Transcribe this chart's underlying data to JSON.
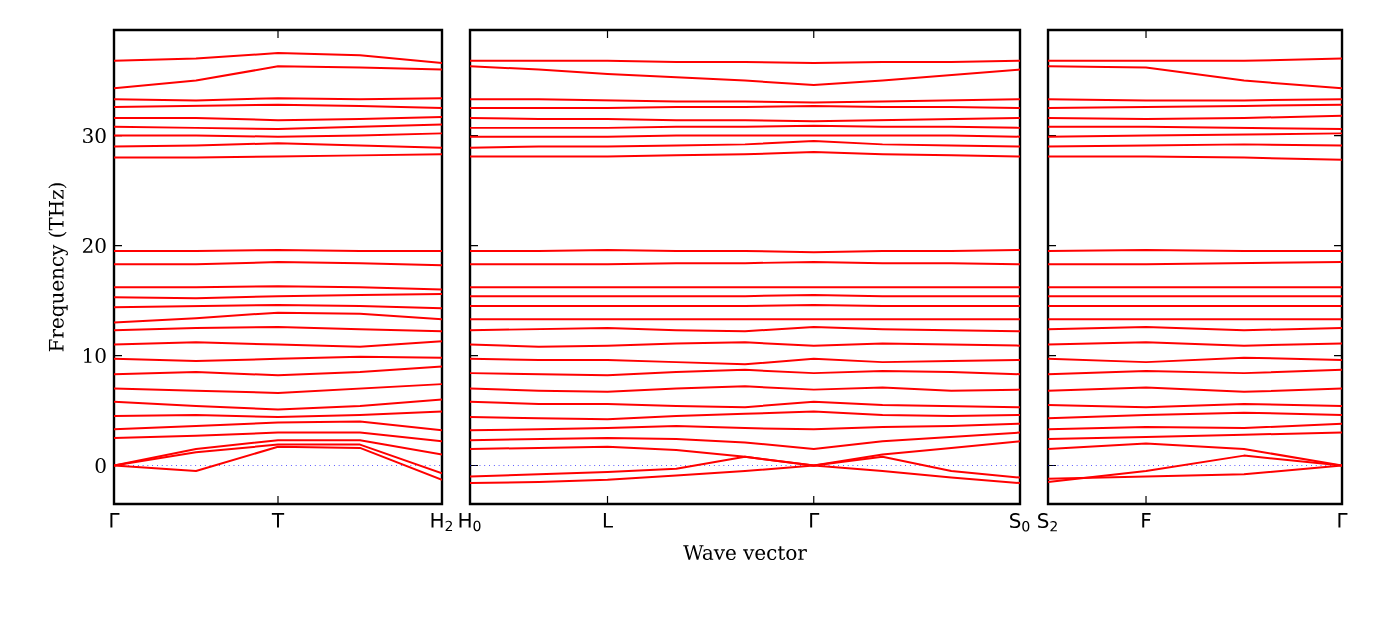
{
  "chart_data": [
    {
      "type": "line",
      "ylabel": "Frequency (THz)",
      "categories": [
        "Γ",
        null,
        "T",
        null,
        "H$_{2}$"
      ],
      "ylim": [
        -3.5,
        39.6
      ],
      "yticks": [
        0,
        10,
        20,
        30
      ],
      "ref_lines": [
        {
          "axis": "y",
          "value": 0,
          "color": "#0000ff",
          "line_style": "dotted"
        }
      ],
      "series": [
        {
          "color": "#ff0000",
          "values": [
            0,
            -0.5,
            1.7,
            1.6,
            -1.3
          ]
        },
        {
          "color": "#ff0000",
          "values": [
            0,
            1.2,
            1.9,
            1.9,
            -0.7
          ]
        },
        {
          "color": "#ff0000",
          "values": [
            0,
            1.5,
            2.3,
            2.3,
            1
          ]
        },
        {
          "color": "#ff0000",
          "values": [
            2.5,
            2.7,
            3,
            3,
            2.2
          ]
        },
        {
          "color": "#ff0000",
          "values": [
            3.3,
            3.6,
            3.9,
            4,
            3.2
          ]
        },
        {
          "color": "#ff0000",
          "values": [
            4.5,
            4.6,
            4.4,
            4.6,
            4.9
          ]
        },
        {
          "color": "#ff0000",
          "values": [
            5.8,
            5.4,
            5.1,
            5.4,
            6
          ]
        },
        {
          "color": "#ff0000",
          "values": [
            7,
            6.8,
            6.6,
            7,
            7.4
          ]
        },
        {
          "color": "#ff0000",
          "values": [
            8.3,
            8.5,
            8.2,
            8.5,
            9
          ]
        },
        {
          "color": "#ff0000",
          "values": [
            9.7,
            9.5,
            9.7,
            9.9,
            9.8
          ]
        },
        {
          "color": "#ff0000",
          "values": [
            11,
            11.2,
            11,
            10.8,
            11.3
          ]
        },
        {
          "color": "#ff0000",
          "values": [
            12.3,
            12.5,
            12.6,
            12.4,
            12.2
          ]
        },
        {
          "color": "#ff0000",
          "values": [
            13,
            13.4,
            13.9,
            13.8,
            13.3
          ]
        },
        {
          "color": "#ff0000",
          "values": [
            14.4,
            14.5,
            14.6,
            14.5,
            14.3
          ]
        },
        {
          "color": "#ff0000",
          "values": [
            15.3,
            15.2,
            15.4,
            15.5,
            15.6
          ]
        },
        {
          "color": "#ff0000",
          "values": [
            16.2,
            16.2,
            16.3,
            16.2,
            16
          ]
        },
        {
          "color": "#ff0000",
          "values": [
            18.3,
            18.3,
            18.5,
            18.4,
            18.2
          ]
        },
        {
          "color": "#ff0000",
          "values": [
            19.5,
            19.5,
            19.6,
            19.5,
            19.5
          ]
        },
        {
          "color": "#ff0000",
          "values": [
            28,
            28,
            28.1,
            28.2,
            28.3
          ]
        },
        {
          "color": "#ff0000",
          "values": [
            29,
            29.1,
            29.3,
            29.1,
            28.9
          ]
        },
        {
          "color": "#ff0000",
          "values": [
            30,
            30,
            29.9,
            30,
            30.2
          ]
        },
        {
          "color": "#ff0000",
          "values": [
            30.8,
            30.7,
            30.6,
            30.8,
            31
          ]
        },
        {
          "color": "#ff0000",
          "values": [
            31.6,
            31.6,
            31.4,
            31.5,
            31.7
          ]
        },
        {
          "color": "#ff0000",
          "values": [
            32.6,
            32.7,
            32.8,
            32.7,
            32.5
          ]
        },
        {
          "color": "#ff0000",
          "values": [
            33.3,
            33.2,
            33.4,
            33.3,
            33.4
          ]
        },
        {
          "color": "#ff0000",
          "values": [
            34.3,
            35,
            36.3,
            36.2,
            36
          ]
        },
        {
          "color": "#ff0000",
          "values": [
            36.8,
            37,
            37.5,
            37.3,
            36.6
          ]
        }
      ]
    },
    {
      "type": "line",
      "xlabel": "Wave vector",
      "categories": [
        "H$_{0}$",
        null,
        "L",
        null,
        null,
        "Γ",
        null,
        null,
        "S$_{0}$"
      ],
      "ylim": [
        -3.5,
        39.6
      ],
      "yticks": [
        0,
        10,
        20,
        30
      ],
      "tick_labels": "x",
      "ref_lines": [
        {
          "axis": "y",
          "value": 0,
          "color": "#0000ff",
          "line_style": "dotted"
        }
      ],
      "series": [
        {
          "color": "#ff0000",
          "values": [
            -1.6,
            -1.5,
            -1.3,
            -0.9,
            -0.5,
            0,
            -0.5,
            -1.1,
            -1.6
          ]
        },
        {
          "color": "#ff0000",
          "values": [
            -1,
            -0.8,
            -0.6,
            -0.3,
            0.8,
            0,
            0.8,
            -0.5,
            -1.1
          ]
        },
        {
          "color": "#ff0000",
          "values": [
            1.5,
            1.6,
            1.7,
            1.4,
            0.8,
            0,
            1,
            1.6,
            2.2
          ]
        },
        {
          "color": "#ff0000",
          "values": [
            2.3,
            2.4,
            2.5,
            2.4,
            2.1,
            1.5,
            2.2,
            2.6,
            3
          ]
        },
        {
          "color": "#ff0000",
          "values": [
            3.2,
            3.3,
            3.4,
            3.6,
            3.4,
            3.3,
            3.5,
            3.6,
            3.8
          ]
        },
        {
          "color": "#ff0000",
          "values": [
            4.4,
            4.3,
            4.2,
            4.5,
            4.7,
            4.9,
            4.6,
            4.5,
            4.6
          ]
        },
        {
          "color": "#ff0000",
          "values": [
            5.8,
            5.6,
            5.6,
            5.4,
            5.3,
            5.8,
            5.5,
            5.4,
            5.3
          ]
        },
        {
          "color": "#ff0000",
          "values": [
            7,
            6.8,
            6.7,
            7,
            7.2,
            6.9,
            7.1,
            6.8,
            6.9
          ]
        },
        {
          "color": "#ff0000",
          "values": [
            8.4,
            8.3,
            8.2,
            8.5,
            8.7,
            8.4,
            8.6,
            8.5,
            8.3
          ]
        },
        {
          "color": "#ff0000",
          "values": [
            9.7,
            9.6,
            9.6,
            9.4,
            9.2,
            9.7,
            9.4,
            9.5,
            9.6
          ]
        },
        {
          "color": "#ff0000",
          "values": [
            11,
            10.8,
            10.9,
            11.1,
            11.2,
            10.9,
            11.1,
            11,
            10.9
          ]
        },
        {
          "color": "#ff0000",
          "values": [
            12.3,
            12.4,
            12.5,
            12.3,
            12.2,
            12.6,
            12.4,
            12.3,
            12.2
          ]
        },
        {
          "color": "#ff0000",
          "values": [
            13.3,
            13.3,
            13.3,
            13.3,
            13.3,
            13.3,
            13.3,
            13.3,
            13.3
          ]
        },
        {
          "color": "#ff0000",
          "values": [
            14.5,
            14.5,
            14.5,
            14.5,
            14.5,
            14.6,
            14.5,
            14.5,
            14.5
          ]
        },
        {
          "color": "#ff0000",
          "values": [
            15.4,
            15.4,
            15.4,
            15.4,
            15.4,
            15.5,
            15.4,
            15.4,
            15.4
          ]
        },
        {
          "color": "#ff0000",
          "values": [
            16.2,
            16.2,
            16.2,
            16.2,
            16.2,
            16.2,
            16.2,
            16.2,
            16.2
          ]
        },
        {
          "color": "#ff0000",
          "values": [
            18.3,
            18.3,
            18.3,
            18.4,
            18.4,
            18.5,
            18.4,
            18.4,
            18.3
          ]
        },
        {
          "color": "#ff0000",
          "values": [
            19.5,
            19.5,
            19.6,
            19.5,
            19.5,
            19.4,
            19.5,
            19.5,
            19.6
          ]
        },
        {
          "color": "#ff0000",
          "values": [
            28.1,
            28.1,
            28.1,
            28.2,
            28.3,
            28.5,
            28.3,
            28.2,
            28.1
          ]
        },
        {
          "color": "#ff0000",
          "values": [
            28.9,
            29,
            29,
            29.1,
            29.2,
            29.5,
            29.2,
            29.1,
            29
          ]
        },
        {
          "color": "#ff0000",
          "values": [
            29.9,
            29.9,
            29.9,
            30,
            30,
            30,
            30,
            30,
            29.9
          ]
        },
        {
          "color": "#ff0000",
          "values": [
            30.7,
            30.7,
            30.7,
            30.8,
            30.8,
            30.9,
            30.8,
            30.8,
            30.7
          ]
        },
        {
          "color": "#ff0000",
          "values": [
            31.6,
            31.5,
            31.5,
            31.4,
            31.4,
            31.3,
            31.4,
            31.5,
            31.6
          ]
        },
        {
          "color": "#ff0000",
          "values": [
            32.5,
            32.5,
            32.5,
            32.6,
            32.6,
            32.7,
            32.6,
            32.6,
            32.5
          ]
        },
        {
          "color": "#ff0000",
          "values": [
            33.3,
            33.3,
            33.2,
            33.1,
            33.1,
            33,
            33.1,
            33.2,
            33.3
          ]
        },
        {
          "color": "#ff0000",
          "values": [
            36.3,
            36,
            35.6,
            35.3,
            35,
            34.6,
            35,
            35.5,
            36
          ]
        },
        {
          "color": "#ff0000",
          "values": [
            36.8,
            36.8,
            36.8,
            36.7,
            36.7,
            36.6,
            36.7,
            36.7,
            36.8
          ]
        }
      ]
    },
    {
      "type": "line",
      "categories": [
        "S$_{2}$",
        "F",
        null,
        "Γ"
      ],
      "ylim": [
        -3.5,
        39.6
      ],
      "yticks": [
        0,
        10,
        20,
        30
      ],
      "tick_labels": "x",
      "ref_lines": [
        {
          "axis": "y",
          "value": 0,
          "color": "#0000ff",
          "line_style": "dotted"
        }
      ],
      "series": [
        {
          "color": "#ff0000",
          "values": [
            -1.5,
            -0.5,
            0.9,
            0
          ]
        },
        {
          "color": "#ff0000",
          "values": [
            -1.2,
            -1,
            -0.8,
            0
          ]
        },
        {
          "color": "#ff0000",
          "values": [
            1.5,
            2,
            1.5,
            0
          ]
        },
        {
          "color": "#ff0000",
          "values": [
            2.4,
            2.6,
            2.8,
            3
          ]
        },
        {
          "color": "#ff0000",
          "values": [
            3.3,
            3.5,
            3.4,
            3.8
          ]
        },
        {
          "color": "#ff0000",
          "values": [
            4.3,
            4.6,
            4.8,
            4.6
          ]
        },
        {
          "color": "#ff0000",
          "values": [
            5.5,
            5.3,
            5.6,
            5.4
          ]
        },
        {
          "color": "#ff0000",
          "values": [
            6.8,
            7.1,
            6.7,
            7
          ]
        },
        {
          "color": "#ff0000",
          "values": [
            8.3,
            8.6,
            8.4,
            8.7
          ]
        },
        {
          "color": "#ff0000",
          "values": [
            9.7,
            9.4,
            9.8,
            9.6
          ]
        },
        {
          "color": "#ff0000",
          "values": [
            11,
            11.2,
            10.9,
            11.1
          ]
        },
        {
          "color": "#ff0000",
          "values": [
            12.4,
            12.6,
            12.3,
            12.5
          ]
        },
        {
          "color": "#ff0000",
          "values": [
            13.3,
            13.3,
            13.3,
            13.3
          ]
        },
        {
          "color": "#ff0000",
          "values": [
            14.5,
            14.5,
            14.5,
            14.5
          ]
        },
        {
          "color": "#ff0000",
          "values": [
            15.4,
            15.4,
            15.4,
            15.4
          ]
        },
        {
          "color": "#ff0000",
          "values": [
            16.2,
            16.2,
            16.2,
            16.2
          ]
        },
        {
          "color": "#ff0000",
          "values": [
            18.3,
            18.3,
            18.4,
            18.5
          ]
        },
        {
          "color": "#ff0000",
          "values": [
            19.5,
            19.6,
            19.5,
            19.5
          ]
        },
        {
          "color": "#ff0000",
          "values": [
            28.1,
            28.1,
            28,
            27.8
          ]
        },
        {
          "color": "#ff0000",
          "values": [
            29,
            29.1,
            29.2,
            29.1
          ]
        },
        {
          "color": "#ff0000",
          "values": [
            29.9,
            30,
            30.1,
            30.2
          ]
        },
        {
          "color": "#ff0000",
          "values": [
            30.8,
            30.8,
            30.7,
            30.6
          ]
        },
        {
          "color": "#ff0000",
          "values": [
            31.6,
            31.5,
            31.6,
            31.8
          ]
        },
        {
          "color": "#ff0000",
          "values": [
            32.5,
            32.6,
            32.7,
            32.8
          ]
        },
        {
          "color": "#ff0000",
          "values": [
            33.3,
            33.2,
            33.2,
            33.3
          ]
        },
        {
          "color": "#ff0000",
          "values": [
            36.3,
            36.2,
            35,
            34.3
          ]
        },
        {
          "color": "#ff0000",
          "values": [
            36.8,
            36.8,
            36.8,
            37
          ]
        }
      ]
    }
  ]
}
